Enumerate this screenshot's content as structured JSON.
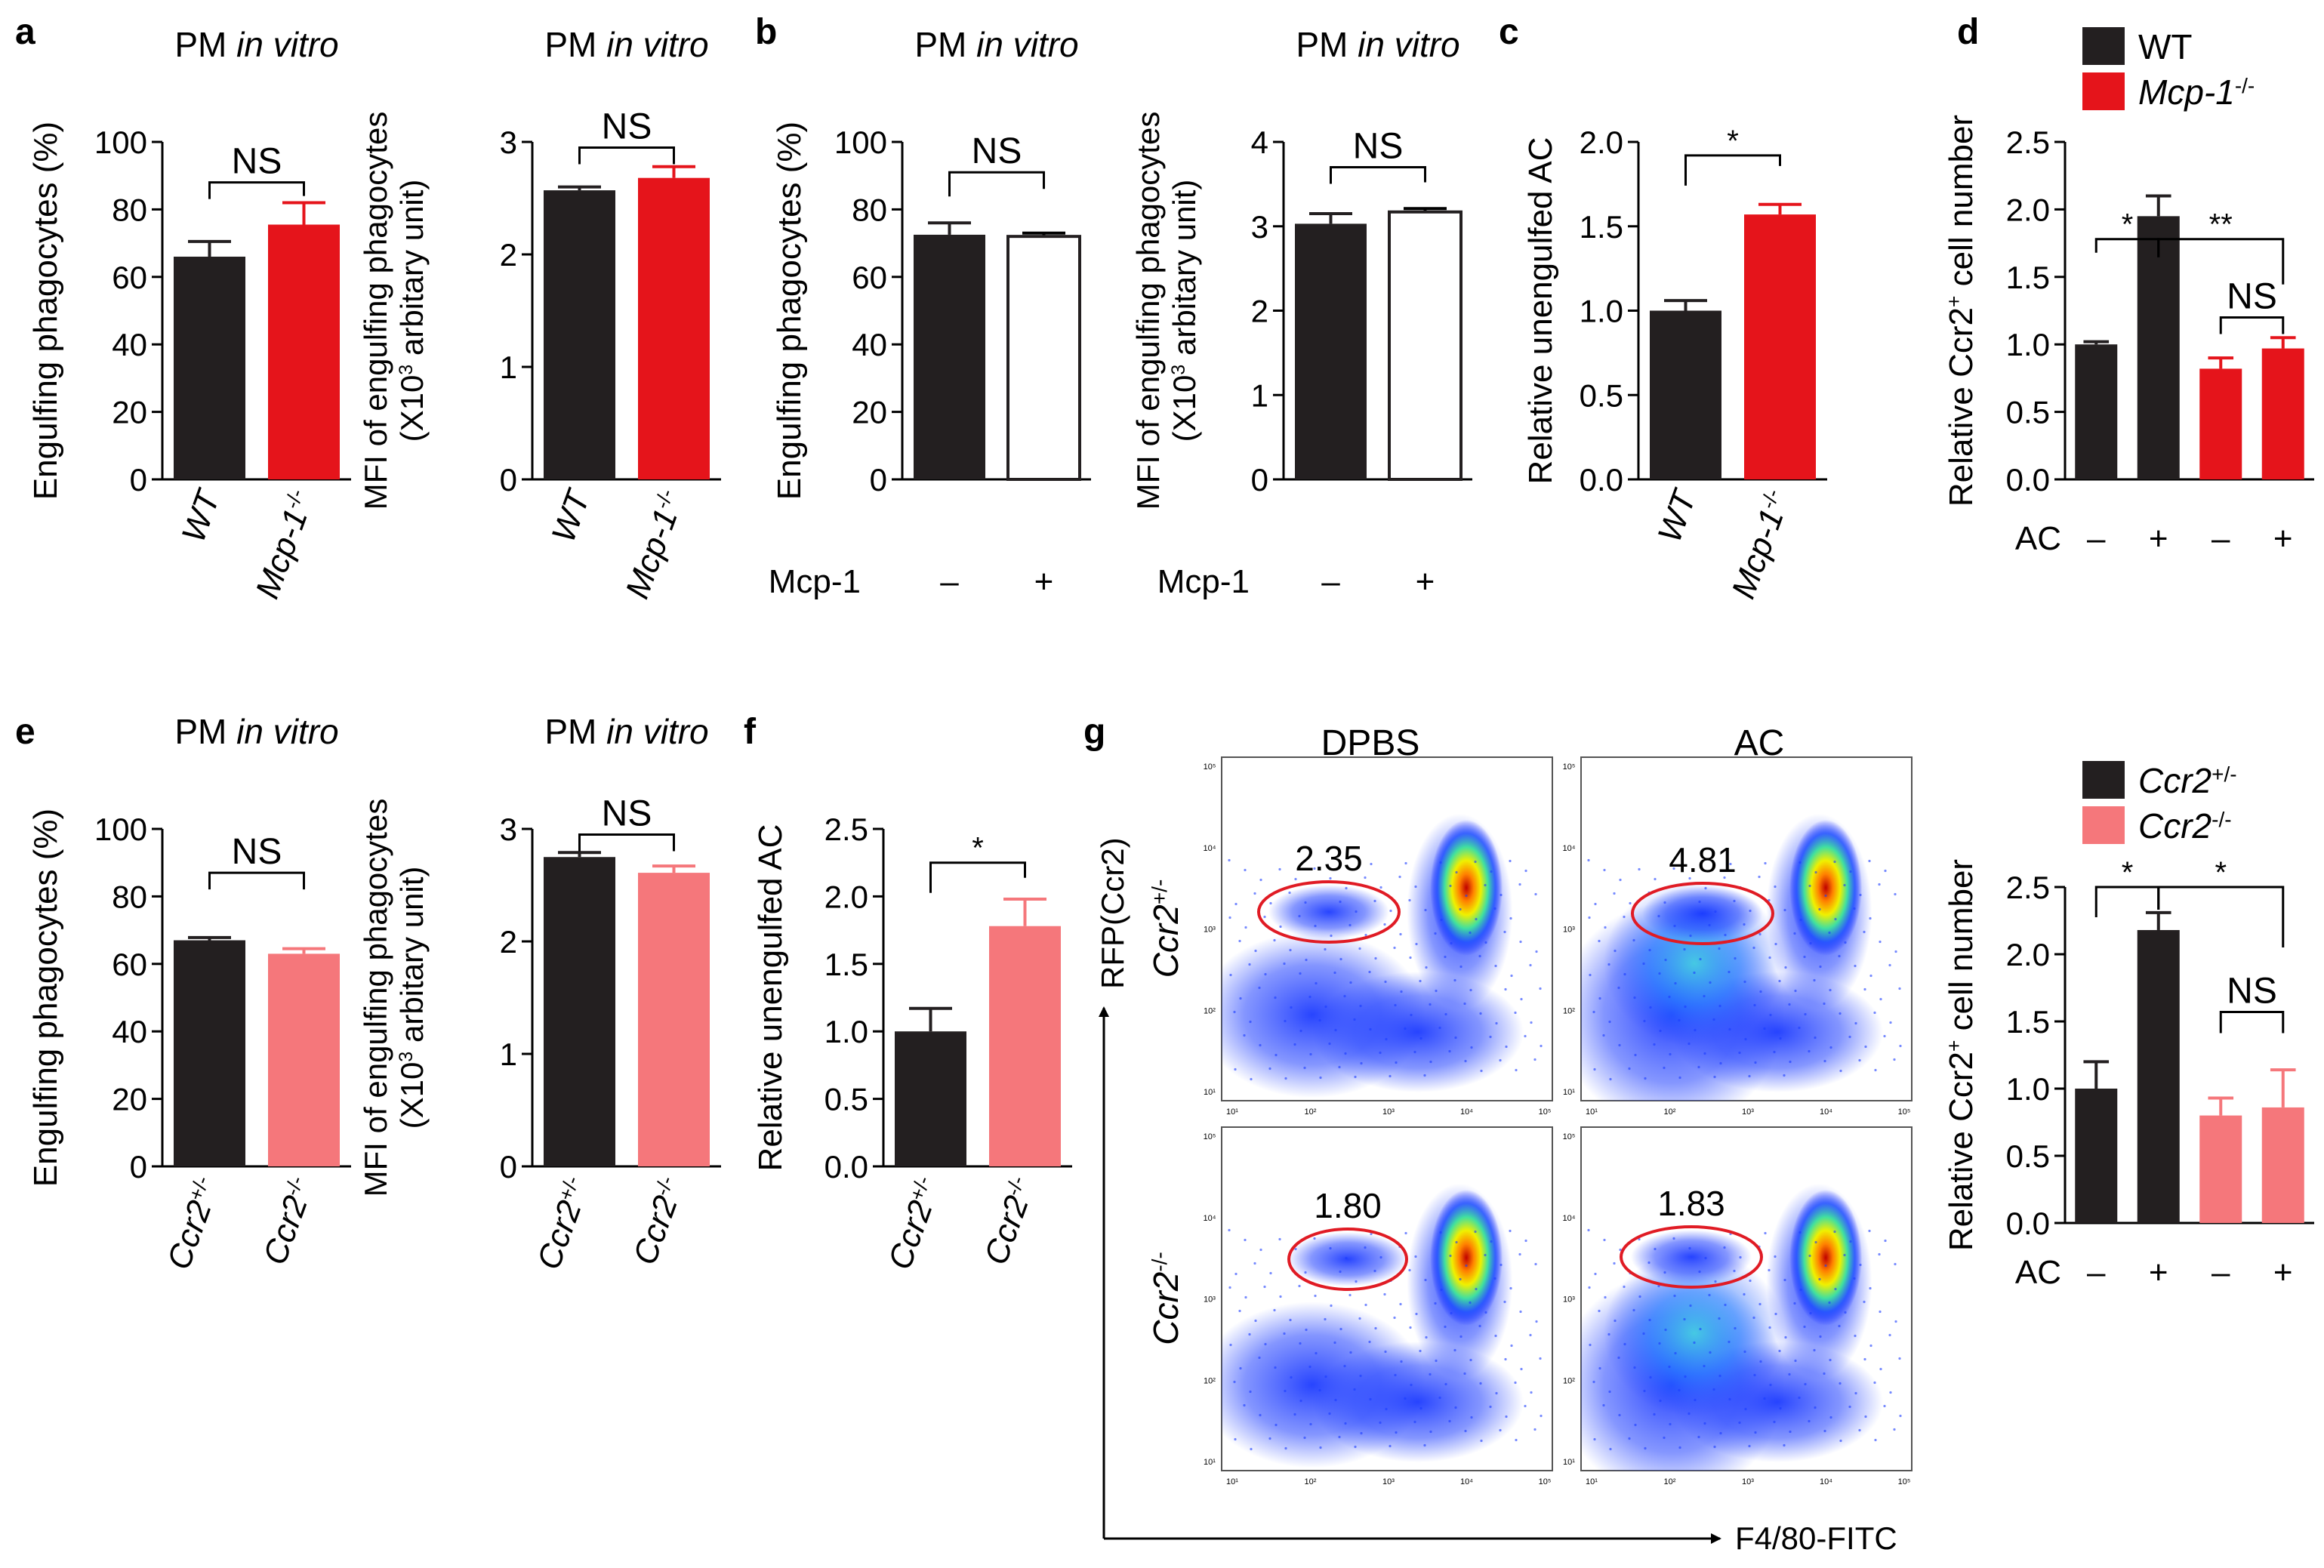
{
  "colors": {
    "black_bar": "#231f20",
    "red_bar": "#e5141b",
    "pink_bar": "#f5777b",
    "white_bar": "#ffffff",
    "gate": "#e01b24"
  },
  "panel_letters": {
    "a": "a",
    "b": "b",
    "c": "c",
    "d": "d",
    "e": "e",
    "f": "f",
    "g": "g"
  },
  "chart_data": [
    {
      "id": "a1",
      "type": "bar",
      "title": "PM in vitro",
      "ylabel": "Engulfing phagocytes (%)",
      "yticks": [
        "0",
        "20",
        "40",
        "60",
        "80",
        "100"
      ],
      "ylim": [
        0,
        100
      ],
      "categories": [
        "WT",
        "Mcp-1-/-"
      ],
      "values": [
        66,
        75.5
      ],
      "errors": [
        4.5,
        6.5
      ],
      "bar_colors": [
        "#231f20",
        "#e5141b"
      ],
      "annotations": [
        {
          "label": "NS",
          "from": 0,
          "to": 1
        }
      ]
    },
    {
      "id": "a2",
      "type": "bar",
      "title": "PM in vitro",
      "ylabel": "MFI of engulfing phagocytes (X10^3 arbitary unit)",
      "yticks": [
        "0",
        "1",
        "2",
        "3"
      ],
      "ylim": [
        0,
        3
      ],
      "categories": [
        "WT",
        "Mcp-1-/-"
      ],
      "values": [
        2.57,
        2.68
      ],
      "errors": [
        0.03,
        0.1
      ],
      "bar_colors": [
        "#231f20",
        "#e5141b"
      ],
      "annotations": [
        {
          "label": "NS",
          "from": 0,
          "to": 1
        }
      ]
    },
    {
      "id": "b1",
      "type": "bar",
      "title": "PM in vitro",
      "ylabel": "Engulfing phagocytes (%)",
      "yticks": [
        "0",
        "20",
        "40",
        "60",
        "80",
        "100"
      ],
      "ylim": [
        0,
        100
      ],
      "row_label": "Mcp-1",
      "conditions": [
        "–",
        "+"
      ],
      "values": [
        72.5,
        72
      ],
      "errors": [
        3.5,
        1
      ],
      "bar_colors": [
        "#231f20",
        "#ffffff"
      ],
      "annotations": [
        {
          "label": "NS",
          "from": 0,
          "to": 1
        }
      ]
    },
    {
      "id": "b2",
      "type": "bar",
      "title": "PM in vitro",
      "ylabel": "MFI of engulfing phagocytes (X10^3 arbitary unit)",
      "yticks": [
        "0",
        "1",
        "2",
        "3",
        "4"
      ],
      "ylim": [
        0,
        4
      ],
      "row_label": "Mcp-1",
      "conditions": [
        "–",
        "+"
      ],
      "values": [
        3.03,
        3.17
      ],
      "errors": [
        0.12,
        0.04
      ],
      "bar_colors": [
        "#231f20",
        "#ffffff"
      ],
      "annotations": [
        {
          "label": "NS",
          "from": 0,
          "to": 1
        }
      ]
    },
    {
      "id": "c",
      "type": "bar",
      "title": "",
      "ylabel": "Relative unengulfed AC",
      "yticks": [
        "0.0",
        "0.5",
        "1.0",
        "1.5",
        "2.0"
      ],
      "ylim": [
        0,
        2
      ],
      "categories": [
        "WT",
        "Mcp-1-/-"
      ],
      "values": [
        1.0,
        1.57
      ],
      "errors": [
        0.06,
        0.06
      ],
      "bar_colors": [
        "#231f20",
        "#e5141b"
      ],
      "annotations": [
        {
          "label": "*",
          "from": 0,
          "to": 1
        }
      ]
    },
    {
      "id": "d",
      "type": "bar",
      "title": "",
      "ylabel": "Relative Ccr2+ cell number",
      "yticks": [
        "0.0",
        "0.5",
        "1.0",
        "1.5",
        "2.0",
        "2.5"
      ],
      "ylim": [
        0,
        2.5
      ],
      "row_label": "AC",
      "conditions": [
        "–",
        "+",
        "–",
        "+"
      ],
      "values": [
        1.0,
        1.95,
        0.82,
        0.97
      ],
      "errors": [
        0.02,
        0.15,
        0.08,
        0.08
      ],
      "bar_colors": [
        "#231f20",
        "#231f20",
        "#e5141b",
        "#e5141b"
      ],
      "legend": [
        "WT",
        "Mcp-1-/-"
      ],
      "annotations": [
        {
          "label": "*",
          "from": 0,
          "to": 1
        },
        {
          "label": "**",
          "from": 1,
          "to": 3
        },
        {
          "label": "NS",
          "from": 2,
          "to": 3
        }
      ]
    },
    {
      "id": "e1",
      "type": "bar",
      "title": "PM in vitro",
      "ylabel": "Engulfing phagocytes (%)",
      "yticks": [
        "0",
        "20",
        "40",
        "60",
        "80",
        "100"
      ],
      "ylim": [
        0,
        100
      ],
      "categories": [
        "Ccr2+/-",
        "Ccr2-/-"
      ],
      "values": [
        67,
        63
      ],
      "errors": [
        0.8,
        1.5
      ],
      "bar_colors": [
        "#231f20",
        "#f5777b"
      ],
      "annotations": [
        {
          "label": "NS",
          "from": 0,
          "to": 1
        }
      ]
    },
    {
      "id": "e2",
      "type": "bar",
      "title": "PM in vitro",
      "ylabel": "MFI of engulfing phagocytes (X10^3 arbitary unit)",
      "yticks": [
        "0",
        "1",
        "2",
        "3"
      ],
      "ylim": [
        0,
        3
      ],
      "categories": [
        "Ccr2+/-",
        "Ccr2-/-"
      ],
      "values": [
        2.75,
        2.61
      ],
      "errors": [
        0.04,
        0.06
      ],
      "bar_colors": [
        "#231f20",
        "#f5777b"
      ],
      "annotations": [
        {
          "label": "NS",
          "from": 0,
          "to": 1
        }
      ]
    },
    {
      "id": "f",
      "type": "bar",
      "title": "",
      "ylabel": "Relative unengulfed AC",
      "yticks": [
        "0.0",
        "0.5",
        "1.0",
        "1.5",
        "2.0",
        "2.5"
      ],
      "ylim": [
        0,
        2.5
      ],
      "categories": [
        "Ccr2+/-",
        "Ccr2-/-"
      ],
      "values": [
        1.0,
        1.78
      ],
      "errors": [
        0.17,
        0.2
      ],
      "bar_colors": [
        "#231f20",
        "#f5777b"
      ],
      "annotations": [
        {
          "label": "*",
          "from": 0,
          "to": 1
        }
      ]
    },
    {
      "id": "g",
      "type": "bar",
      "title": "",
      "ylabel": "Relative Ccr2+ cell number",
      "yticks": [
        "0.0",
        "0.5",
        "1.0",
        "1.5",
        "2.0",
        "2.5"
      ],
      "ylim": [
        0,
        2.5
      ],
      "row_label": "AC",
      "conditions": [
        "–",
        "+",
        "–",
        "+"
      ],
      "values": [
        1.0,
        2.18,
        0.8,
        0.86
      ],
      "errors": [
        0.2,
        0.13,
        0.13,
        0.28
      ],
      "bar_colors": [
        "#231f20",
        "#231f20",
        "#f5777b",
        "#f5777b"
      ],
      "legend": [
        "Ccr2+/-",
        "Ccr2-/-"
      ],
      "annotations": [
        {
          "label": "*",
          "from": 0,
          "to": 1
        },
        {
          "label": "*",
          "from": 1,
          "to": 3
        },
        {
          "label": "NS",
          "from": 2,
          "to": 3
        }
      ]
    }
  ],
  "flow": {
    "col_titles": [
      "DPBS",
      "AC"
    ],
    "row_labels": [
      "Ccr2+/-",
      "Ccr2-/-"
    ],
    "y_axis_label": "RFP(Ccr2)",
    "x_axis_label": "F4/80-FITC",
    "gate_values": [
      "2.35",
      "4.81",
      "1.80",
      "1.83"
    ],
    "tick_labels": [
      "10¹",
      "10²",
      "10³",
      "10⁴",
      "10⁵"
    ]
  }
}
